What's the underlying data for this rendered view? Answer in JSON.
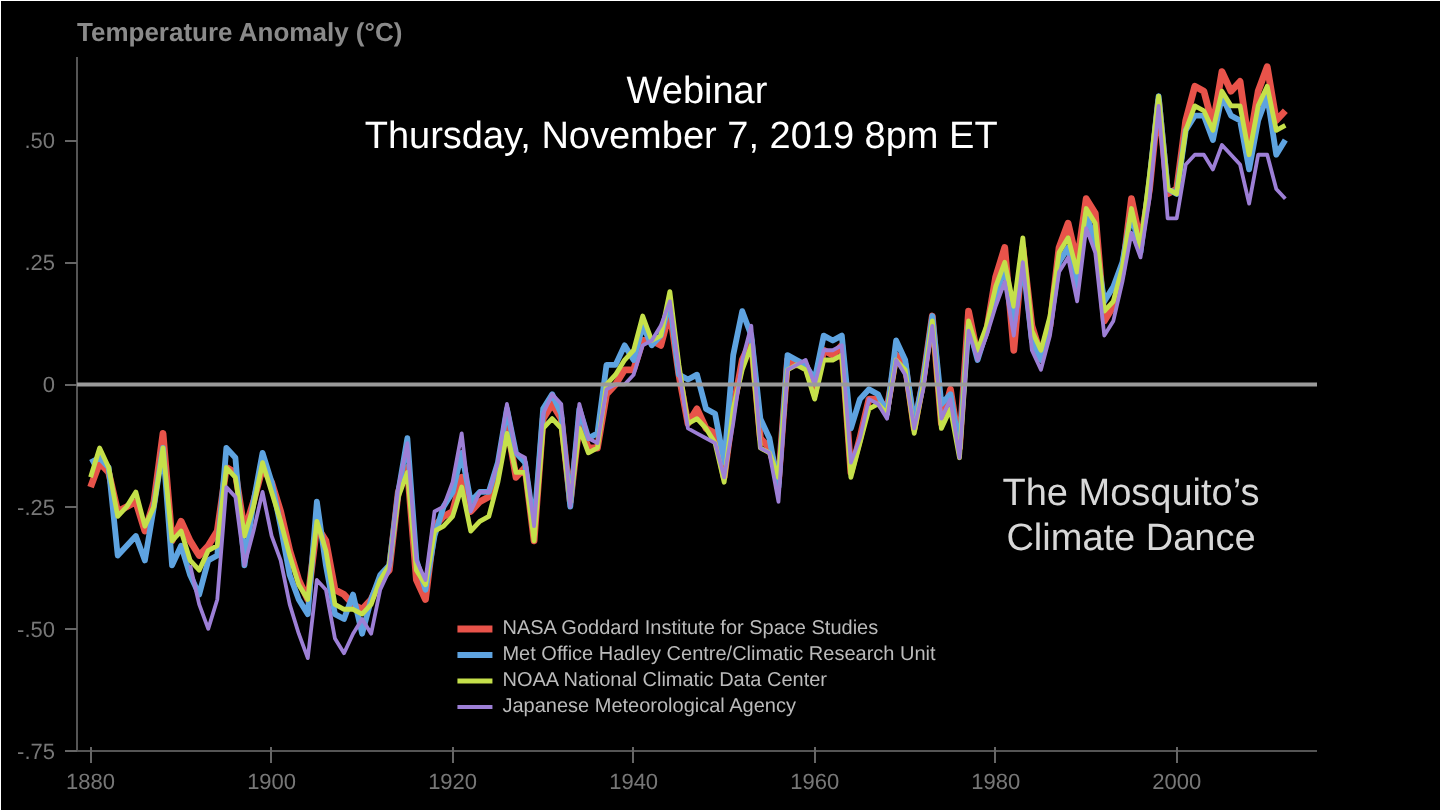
{
  "chart_data": {
    "type": "line",
    "title": "Webinar",
    "subtitle": "Thursday, November 7, 2019    8pm ET",
    "ylabel": "Temperature Anomaly (°C)",
    "annotations": [
      "The Mosquito’s Climate Dance"
    ],
    "x": [
      1880,
      1881,
      1882,
      1883,
      1884,
      1885,
      1886,
      1887,
      1888,
      1889,
      1890,
      1891,
      1892,
      1893,
      1894,
      1895,
      1896,
      1897,
      1898,
      1899,
      1900,
      1901,
      1902,
      1903,
      1904,
      1905,
      1906,
      1907,
      1908,
      1909,
      1910,
      1911,
      1912,
      1913,
      1914,
      1915,
      1916,
      1917,
      1918,
      1919,
      1920,
      1921,
      1922,
      1923,
      1924,
      1925,
      1926,
      1927,
      1928,
      1929,
      1930,
      1931,
      1932,
      1933,
      1934,
      1935,
      1936,
      1937,
      1938,
      1939,
      1940,
      1941,
      1942,
      1943,
      1944,
      1945,
      1946,
      1947,
      1948,
      1949,
      1950,
      1951,
      1952,
      1953,
      1954,
      1955,
      1956,
      1957,
      1958,
      1959,
      1960,
      1961,
      1962,
      1963,
      1964,
      1965,
      1966,
      1967,
      1968,
      1969,
      1970,
      1971,
      1972,
      1973,
      1974,
      1975,
      1976,
      1977,
      1978,
      1979,
      1980,
      1981,
      1982,
      1983,
      1984,
      1985,
      1986,
      1987,
      1988,
      1989,
      1990,
      1991,
      1992,
      1993,
      1994,
      1995,
      1996,
      1997,
      1998,
      1999,
      2000,
      2001,
      2002,
      2003,
      2004,
      2005,
      2006,
      2007,
      2008,
      2009,
      2010,
      2011,
      2012
    ],
    "series": [
      {
        "name": "NASA Goddard Institute for Space Studies",
        "color": "#e8534a",
        "values": [
          -0.21,
          -0.16,
          -0.18,
          -0.26,
          -0.25,
          -0.24,
          -0.3,
          -0.24,
          -0.1,
          -0.32,
          -0.28,
          -0.32,
          -0.35,
          -0.33,
          -0.3,
          -0.17,
          -0.18,
          -0.3,
          -0.24,
          -0.17,
          -0.2,
          -0.26,
          -0.34,
          -0.4,
          -0.44,
          -0.29,
          -0.32,
          -0.42,
          -0.43,
          -0.45,
          -0.46,
          -0.44,
          -0.4,
          -0.38,
          -0.22,
          -0.17,
          -0.4,
          -0.44,
          -0.29,
          -0.27,
          -0.26,
          -0.19,
          -0.26,
          -0.24,
          -0.23,
          -0.18,
          -0.08,
          -0.19,
          -0.17,
          -0.32,
          -0.07,
          -0.04,
          -0.07,
          -0.24,
          -0.08,
          -0.13,
          -0.13,
          -0.02,
          0.0,
          0.03,
          0.03,
          0.09,
          0.09,
          0.08,
          0.15,
          0.02,
          -0.08,
          -0.05,
          -0.09,
          -0.1,
          -0.19,
          -0.05,
          0.05,
          0.09,
          -0.11,
          -0.13,
          -0.2,
          0.05,
          0.04,
          0.04,
          -0.02,
          0.07,
          0.06,
          0.08,
          -0.18,
          -0.11,
          -0.03,
          -0.03,
          -0.05,
          0.06,
          0.04,
          -0.09,
          0.01,
          0.14,
          -0.08,
          -0.01,
          -0.13,
          0.15,
          0.06,
          0.11,
          0.22,
          0.28,
          0.07,
          0.28,
          0.12,
          0.06,
          0.12,
          0.28,
          0.33,
          0.25,
          0.38,
          0.35,
          0.13,
          0.16,
          0.23,
          0.38,
          0.29,
          0.4,
          0.58,
          0.39,
          0.4,
          0.54,
          0.61,
          0.6,
          0.53,
          0.64,
          0.6,
          0.62,
          0.49,
          0.6,
          0.65,
          0.54,
          0.56
        ]
      },
      {
        "name": "Met Office Hadley Centre/Climatic Research Unit",
        "color": "#5ea3e0",
        "values": [
          -0.16,
          -0.15,
          -0.17,
          -0.35,
          -0.33,
          -0.31,
          -0.36,
          -0.25,
          -0.13,
          -0.37,
          -0.33,
          -0.39,
          -0.43,
          -0.36,
          -0.35,
          -0.13,
          -0.15,
          -0.37,
          -0.24,
          -0.14,
          -0.2,
          -0.29,
          -0.39,
          -0.44,
          -0.47,
          -0.24,
          -0.37,
          -0.47,
          -0.48,
          -0.43,
          -0.51,
          -0.44,
          -0.39,
          -0.37,
          -0.22,
          -0.11,
          -0.36,
          -0.42,
          -0.31,
          -0.25,
          -0.22,
          -0.14,
          -0.24,
          -0.22,
          -0.22,
          -0.16,
          -0.05,
          -0.14,
          -0.16,
          -0.29,
          -0.05,
          -0.02,
          -0.06,
          -0.25,
          -0.05,
          -0.11,
          -0.1,
          0.04,
          0.04,
          0.08,
          0.05,
          0.12,
          0.08,
          0.1,
          0.17,
          0.02,
          0.01,
          0.02,
          -0.05,
          -0.06,
          -0.16,
          0.06,
          0.15,
          0.1,
          -0.07,
          -0.11,
          -0.21,
          0.06,
          0.05,
          0.04,
          0.01,
          0.1,
          0.09,
          0.1,
          -0.09,
          -0.03,
          -0.01,
          -0.02,
          -0.06,
          0.09,
          0.05,
          -0.08,
          0.01,
          0.14,
          -0.04,
          -0.02,
          -0.13,
          0.12,
          0.05,
          0.11,
          0.18,
          0.24,
          0.12,
          0.25,
          0.09,
          0.05,
          0.12,
          0.25,
          0.28,
          0.2,
          0.35,
          0.29,
          0.17,
          0.2,
          0.25,
          0.35,
          0.27,
          0.42,
          0.59,
          0.4,
          0.39,
          0.52,
          0.55,
          0.55,
          0.5,
          0.59,
          0.55,
          0.54,
          0.44,
          0.54,
          0.59,
          0.47,
          0.5
        ]
      },
      {
        "name": "NOAA National Climatic Data Center",
        "color": "#c5e04a",
        "values": [
          -0.19,
          -0.13,
          -0.17,
          -0.27,
          -0.25,
          -0.22,
          -0.29,
          -0.25,
          -0.13,
          -0.32,
          -0.3,
          -0.36,
          -0.38,
          -0.34,
          -0.33,
          -0.17,
          -0.19,
          -0.31,
          -0.25,
          -0.16,
          -0.22,
          -0.28,
          -0.35,
          -0.41,
          -0.44,
          -0.28,
          -0.34,
          -0.45,
          -0.46,
          -0.46,
          -0.47,
          -0.45,
          -0.4,
          -0.37,
          -0.23,
          -0.18,
          -0.38,
          -0.41,
          -0.3,
          -0.29,
          -0.27,
          -0.21,
          -0.3,
          -0.28,
          -0.27,
          -0.2,
          -0.1,
          -0.18,
          -0.18,
          -0.32,
          -0.09,
          -0.07,
          -0.09,
          -0.24,
          -0.09,
          -0.14,
          -0.13,
          0.0,
          0.02,
          0.05,
          0.07,
          0.14,
          0.09,
          0.1,
          0.19,
          0.04,
          -0.08,
          -0.07,
          -0.09,
          -0.12,
          -0.2,
          -0.05,
          0.03,
          0.08,
          -0.13,
          -0.14,
          -0.19,
          0.03,
          0.04,
          0.03,
          -0.03,
          0.05,
          0.05,
          0.06,
          -0.19,
          -0.12,
          -0.05,
          -0.04,
          -0.06,
          0.05,
          0.03,
          -0.1,
          0.0,
          0.13,
          -0.09,
          -0.05,
          -0.15,
          0.13,
          0.07,
          0.12,
          0.2,
          0.25,
          0.16,
          0.3,
          0.11,
          0.07,
          0.14,
          0.27,
          0.3,
          0.23,
          0.36,
          0.33,
          0.15,
          0.17,
          0.24,
          0.36,
          0.28,
          0.43,
          0.59,
          0.4,
          0.39,
          0.52,
          0.57,
          0.56,
          0.52,
          0.6,
          0.57,
          0.57,
          0.47,
          0.57,
          0.61,
          0.52,
          0.53
        ]
      },
      {
        "name": "Japanese Meteorological Agency",
        "color": "#9d7fd6",
        "values": [
          null,
          null,
          null,
          null,
          null,
          null,
          null,
          null,
          null,
          null,
          null,
          -0.37,
          -0.45,
          -0.5,
          -0.44,
          -0.21,
          -0.23,
          -0.37,
          -0.3,
          -0.22,
          -0.31,
          -0.36,
          -0.45,
          -0.51,
          -0.56,
          -0.4,
          -0.42,
          -0.52,
          -0.55,
          -0.51,
          -0.48,
          -0.51,
          -0.42,
          -0.38,
          -0.21,
          -0.12,
          -0.36,
          -0.4,
          -0.26,
          -0.25,
          -0.2,
          -0.1,
          -0.26,
          -0.22,
          -0.22,
          -0.16,
          -0.04,
          -0.14,
          -0.15,
          -0.29,
          -0.06,
          -0.02,
          -0.04,
          -0.25,
          -0.04,
          -0.11,
          -0.12,
          -0.01,
          0.0,
          0.0,
          0.02,
          0.08,
          0.09,
          0.12,
          0.17,
          0.03,
          -0.09,
          -0.1,
          -0.11,
          -0.12,
          -0.19,
          -0.08,
          0.05,
          0.12,
          -0.13,
          -0.14,
          -0.24,
          0.03,
          0.04,
          0.05,
          0.0,
          0.07,
          0.07,
          0.08,
          -0.16,
          -0.11,
          -0.03,
          -0.04,
          -0.07,
          0.05,
          0.02,
          -0.09,
          -0.01,
          0.12,
          -0.07,
          -0.03,
          -0.15,
          0.11,
          0.05,
          0.1,
          0.16,
          0.21,
          0.1,
          0.25,
          0.07,
          0.03,
          0.1,
          0.23,
          0.26,
          0.17,
          0.32,
          0.27,
          0.1,
          0.13,
          0.21,
          0.31,
          0.26,
          0.38,
          0.57,
          0.34,
          0.34,
          0.45,
          0.47,
          0.47,
          0.44,
          0.49,
          0.47,
          0.45,
          0.37,
          0.47,
          0.47,
          0.4,
          0.38
        ]
      }
    ],
    "xlim": [
      1878.5,
      2015.5
    ],
    "ylim": [
      -0.75,
      0.67
    ],
    "xticks": [
      1880,
      1900,
      1920,
      1940,
      1960,
      1980,
      2000
    ],
    "yticks": [
      {
        "value": 0.5,
        "label": ".50"
      },
      {
        "value": 0.25,
        "label": ".25"
      },
      0,
      {
        "value": -0.25,
        "label": "-.25"
      },
      {
        "value": -0.5,
        "label": "-.50"
      },
      {
        "value": -0.75,
        "label": "-.75"
      }
    ],
    "ref_lines": [
      {
        "axis": "y",
        "value": 0,
        "color": "#9a9a9a"
      }
    ],
    "grid": false,
    "legend": "bottom",
    "marker": "none",
    "line_style": "solid"
  }
}
